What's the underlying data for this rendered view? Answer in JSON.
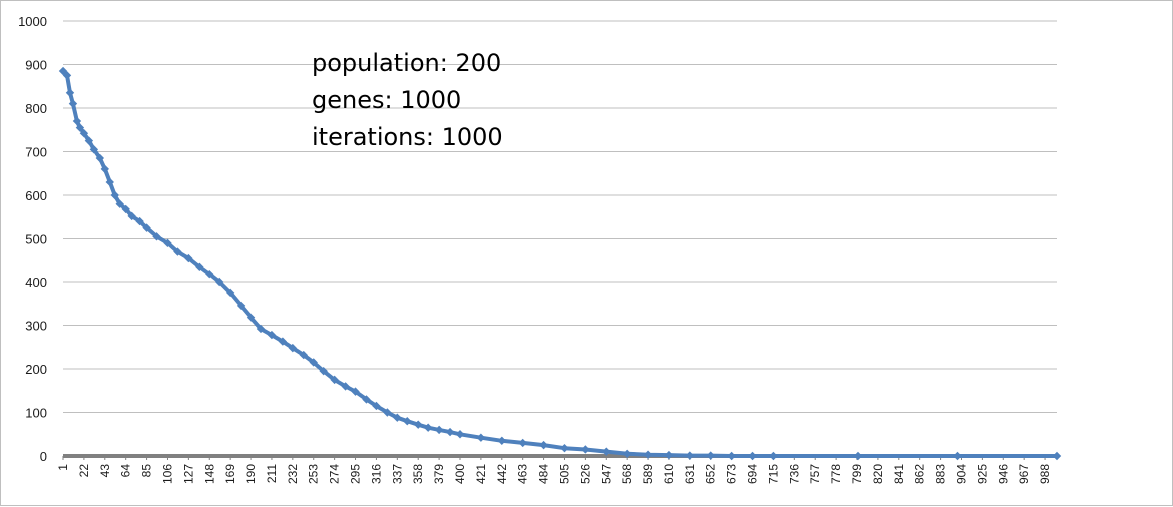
{
  "chart_data": {
    "type": "line",
    "title": "",
    "xlabel": "",
    "ylabel": "",
    "ylim": [
      0,
      1000
    ],
    "yticks": [
      0,
      100,
      200,
      300,
      400,
      500,
      600,
      700,
      800,
      900,
      1000
    ],
    "xlim": [
      1,
      1000
    ],
    "xtick_labels": [
      "1",
      "22",
      "43",
      "64",
      "85",
      "106",
      "127",
      "148",
      "169",
      "190",
      "211",
      "232",
      "253",
      "274",
      "295",
      "316",
      "337",
      "358",
      "379",
      "400",
      "421",
      "442",
      "463",
      "484",
      "505",
      "526",
      "547",
      "568",
      "589",
      "610",
      "631",
      "652",
      "673",
      "694",
      "715",
      "736",
      "757",
      "778",
      "799",
      "820",
      "841",
      "862",
      "883",
      "904",
      "925",
      "946",
      "967",
      "988"
    ],
    "grid": true,
    "legend": "none",
    "colors": {
      "series": "#4f81bd",
      "axis": "#808080",
      "grid": "#bfbfbf"
    },
    "series": [
      {
        "marker": "diamond",
        "x": [
          1,
          5,
          8,
          11,
          15,
          18,
          22,
          27,
          32,
          38,
          43,
          48,
          53,
          58,
          64,
          70,
          78,
          85,
          95,
          106,
          116,
          127,
          138,
          148,
          158,
          169,
          180,
          190,
          200,
          211,
          222,
          232,
          243,
          253,
          263,
          274,
          285,
          295,
          306,
          316,
          327,
          337,
          347,
          358,
          368,
          379,
          390,
          400,
          421,
          442,
          463,
          484,
          505,
          526,
          547,
          568,
          589,
          610,
          631,
          652,
          673,
          694,
          715,
          800,
          900,
          1000
        ],
        "values": [
          885,
          875,
          835,
          810,
          770,
          755,
          742,
          725,
          705,
          685,
          660,
          630,
          600,
          580,
          568,
          552,
          540,
          525,
          505,
          490,
          470,
          455,
          435,
          418,
          400,
          375,
          345,
          318,
          292,
          278,
          263,
          248,
          232,
          215,
          195,
          175,
          160,
          148,
          130,
          115,
          100,
          88,
          80,
          72,
          65,
          60,
          55,
          50,
          42,
          35,
          30,
          25,
          18,
          15,
          10,
          5,
          3,
          2,
          1,
          1,
          0,
          0,
          0,
          0,
          0,
          0
        ]
      }
    ],
    "annotations": [
      "population: 200",
      "genes: 1000",
      "iterations: 1000"
    ]
  }
}
